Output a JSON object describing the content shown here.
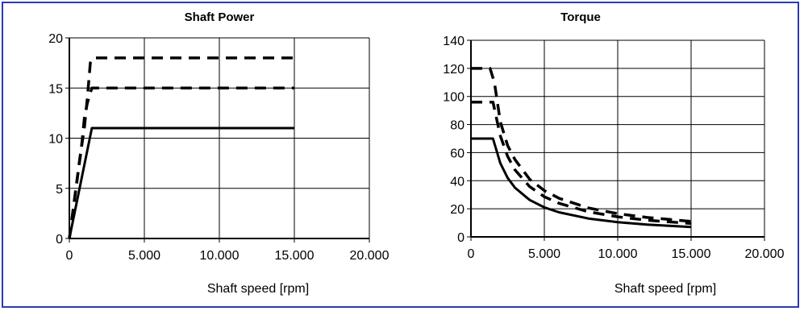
{
  "colors": {
    "frame": "#2a3bb5",
    "line": "#000000",
    "background": "#ffffff"
  },
  "chart_data": [
    {
      "type": "line",
      "title": "Shaft Power",
      "xlabel": "Shaft speed [rpm]",
      "ylabel": "",
      "xlim": [
        0,
        20000
      ],
      "ylim": [
        0,
        20
      ],
      "xticks": [
        0,
        5000,
        10000,
        15000,
        20000
      ],
      "xtick_labels": [
        "0",
        "5.000",
        "10.000",
        "15.000",
        "20.000"
      ],
      "yticks": [
        0,
        5,
        10,
        15,
        20
      ],
      "ytick_labels": [
        "0",
        "5",
        "10",
        "15",
        "20"
      ],
      "grid": true,
      "series": [
        {
          "style": "solid",
          "x": [
            0,
            1500,
            15000
          ],
          "y": [
            0,
            11,
            11
          ]
        },
        {
          "style": "dashed",
          "x": [
            0,
            800,
            1000,
            1200,
            1500,
            15000
          ],
          "y": [
            0,
            9,
            12,
            13.5,
            15,
            15
          ]
        },
        {
          "style": "dashed",
          "x": [
            0,
            700,
            1000,
            1200,
            1400,
            1600,
            15000
          ],
          "y": [
            0,
            8,
            11,
            14,
            17.5,
            18,
            18
          ]
        }
      ]
    },
    {
      "type": "line",
      "title": "Torque",
      "xlabel": "Shaft speed [rpm]",
      "ylabel": "",
      "xlim": [
        0,
        20000
      ],
      "ylim": [
        0,
        140
      ],
      "xticks": [
        0,
        5000,
        10000,
        15000,
        20000
      ],
      "xtick_labels": [
        "0",
        "5.000",
        "10.000",
        "15.000",
        "20.000"
      ],
      "yticks": [
        0,
        20,
        40,
        60,
        80,
        100,
        120,
        140
      ],
      "ytick_labels": [
        "0",
        "20",
        "40",
        "60",
        "80",
        "100",
        "120",
        "140"
      ],
      "grid": true,
      "series": [
        {
          "style": "solid",
          "x": [
            0,
            1500,
            2000,
            2500,
            3000,
            4000,
            5000,
            6000,
            8000,
            10000,
            12000,
            15000
          ],
          "y": [
            70,
            70,
            52.5,
            42,
            35,
            26.3,
            21,
            17.5,
            13.1,
            10.5,
            8.8,
            7
          ]
        },
        {
          "style": "dashed",
          "x": [
            0,
            1500,
            2000,
            2500,
            3000,
            4000,
            5000,
            6000,
            8000,
            10000,
            12000,
            15000
          ],
          "y": [
            96,
            96,
            72,
            57.3,
            47.7,
            35.8,
            28.6,
            23.9,
            17.9,
            14.3,
            11.9,
            9.5
          ]
        },
        {
          "style": "dashed",
          "x": [
            0,
            1300,
            1600,
            2000,
            2500,
            3000,
            4000,
            5000,
            6000,
            8000,
            10000,
            12000,
            15000
          ],
          "y": [
            120,
            120,
            110,
            82,
            65,
            55,
            41,
            33,
            27.5,
            20.6,
            16.5,
            13.8,
            11
          ]
        }
      ]
    }
  ]
}
